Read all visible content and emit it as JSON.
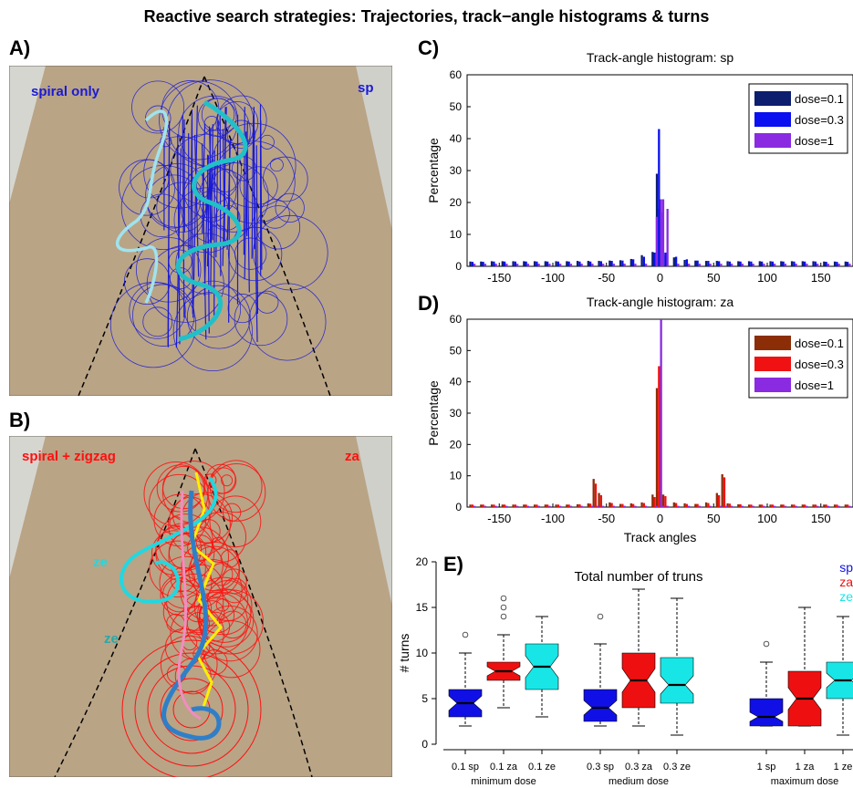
{
  "figure": {
    "title": "Reactive search strategies: Trajectories, track−angle histograms & turns"
  },
  "panel_a": {
    "label": "A)",
    "left_text": "spiral only",
    "right_text": "sp",
    "colors": {
      "main": "#1a1ad6",
      "accent1": "#9fe3ee",
      "accent2": "#20c0c8"
    }
  },
  "panel_b": {
    "label": "B)",
    "left_text": "spiral + zigzag",
    "right_text": "za",
    "ze_label_1": "ze",
    "ze_label_2": "ze",
    "colors": {
      "main": "#ff1010",
      "yellow": "#ffee00",
      "cyan": "#20d8e0",
      "blue": "#2f7fc8",
      "pink": "#f28cc0"
    }
  },
  "chart_data": [
    {
      "type": "bar",
      "panel_label": "C)",
      "title": "Track-angle histogram: sp",
      "xlabel": "",
      "ylabel": "Percentage",
      "xlim": [
        -180,
        180
      ],
      "ylim": [
        0,
        60
      ],
      "xticks": [
        -150,
        -100,
        -50,
        0,
        50,
        100,
        150
      ],
      "yticks": [
        0,
        10,
        20,
        30,
        40,
        50,
        60
      ],
      "legend_position": "top-right",
      "x": [
        -175,
        -165,
        -155,
        -145,
        -135,
        -125,
        -115,
        -105,
        -95,
        -85,
        -75,
        -65,
        -55,
        -45,
        -35,
        -25,
        -15,
        -5,
        -1,
        1,
        5,
        15,
        25,
        35,
        45,
        55,
        65,
        75,
        85,
        95,
        105,
        115,
        125,
        135,
        145,
        155,
        165,
        175
      ],
      "series": [
        {
          "name": "dose=0.1",
          "color": "#0d1e6e",
          "values": [
            1.5,
            1.5,
            1.6,
            1.6,
            1.6,
            1.6,
            1.6,
            1.6,
            1.6,
            1.6,
            1.7,
            1.7,
            1.7,
            1.8,
            1.9,
            2.3,
            3.5,
            4.5,
            29,
            18,
            3.5,
            2.8,
            2.0,
            1.8,
            1.7,
            1.7,
            1.6,
            1.6,
            1.6,
            1.6,
            1.6,
            1.6,
            1.6,
            1.6,
            1.6,
            1.5,
            1.5,
            1.5
          ]
        },
        {
          "name": "dose=0.3",
          "color": "#0a10f0",
          "values": [
            1.4,
            1.4,
            1.5,
            1.5,
            1.5,
            1.5,
            1.5,
            1.5,
            1.5,
            1.5,
            1.5,
            1.5,
            1.6,
            1.7,
            1.8,
            2.2,
            3.0,
            4.3,
            43,
            17,
            4.3,
            3.0,
            2.2,
            1.8,
            1.7,
            1.6,
            1.5,
            1.5,
            1.5,
            1.5,
            1.5,
            1.5,
            1.5,
            1.5,
            1.5,
            1.4,
            1.4,
            1.4
          ]
        },
        {
          "name": "dose=1",
          "color": "#8a2be2",
          "values": [
            0.8,
            0.8,
            0.8,
            0.8,
            0.8,
            0.8,
            0.8,
            0.8,
            0.8,
            0.8,
            0.8,
            0.8,
            0.8,
            0.8,
            0.8,
            0.8,
            0.8,
            15.5,
            21,
            21,
            18,
            0.8,
            0.8,
            0.8,
            0.8,
            0.8,
            0.8,
            0.8,
            0.8,
            0.8,
            0.8,
            0.8,
            0.8,
            0.8,
            0.8,
            0.8,
            0.8,
            0.8
          ]
        }
      ]
    },
    {
      "type": "bar",
      "panel_label": "D)",
      "title": "Track-angle histogram: za",
      "xlabel": "Track angles",
      "ylabel": "Percentage",
      "xlim": [
        -180,
        180
      ],
      "ylim": [
        0,
        60
      ],
      "xticks": [
        -150,
        -100,
        -50,
        0,
        50,
        100,
        150
      ],
      "yticks": [
        0,
        10,
        20,
        30,
        40,
        50,
        60
      ],
      "legend_position": "top-right",
      "x": [
        -175,
        -165,
        -155,
        -145,
        -135,
        -125,
        -115,
        -105,
        -95,
        -85,
        -75,
        -65,
        -60,
        -55,
        -45,
        -35,
        -25,
        -15,
        -5,
        -1,
        1,
        5,
        15,
        25,
        35,
        45,
        55,
        60,
        65,
        75,
        85,
        95,
        105,
        115,
        125,
        135,
        145,
        155,
        165,
        175
      ],
      "series": [
        {
          "name": "dose=0.1",
          "color": "#8b2e08",
          "values": [
            0.8,
            0.8,
            0.8,
            0.8,
            0.8,
            0.8,
            0.8,
            0.8,
            0.8,
            0.8,
            0.9,
            1.2,
            9.0,
            4.5,
            1.5,
            1.0,
            1.2,
            1.5,
            4.0,
            38,
            5,
            4.0,
            1.5,
            1.2,
            1.0,
            1.5,
            4.5,
            10.5,
            1.2,
            0.9,
            0.8,
            0.8,
            0.8,
            0.8,
            0.8,
            0.8,
            0.8,
            0.8,
            0.8,
            0.8
          ]
        },
        {
          "name": "dose=0.3",
          "color": "#f01212",
          "values": [
            0.8,
            0.8,
            0.8,
            0.8,
            0.8,
            0.8,
            0.8,
            0.8,
            0.8,
            0.8,
            0.9,
            1.1,
            7.5,
            3.8,
            1.3,
            1.0,
            1.0,
            1.3,
            3.2,
            45,
            4,
            3.5,
            1.3,
            1.0,
            1.0,
            1.3,
            3.8,
            9.5,
            1.1,
            0.9,
            0.8,
            0.8,
            0.8,
            0.8,
            0.8,
            0.8,
            0.8,
            0.8,
            0.8,
            0.8
          ]
        },
        {
          "name": "dose=1",
          "color": "#8a2be2",
          "values": [
            0.4,
            0.4,
            0.4,
            0.4,
            0.4,
            0.4,
            0.4,
            0.4,
            0.4,
            0.4,
            0.4,
            0.4,
            0.4,
            0.4,
            0.4,
            0.4,
            0.4,
            0.4,
            0.4,
            60,
            0.4,
            0.4,
            0.4,
            0.4,
            0.4,
            0.4,
            0.4,
            0.4,
            0.4,
            0.4,
            0.4,
            0.4,
            0.4,
            0.4,
            0.4,
            0.4,
            0.4,
            0.4,
            0.4,
            0.4
          ]
        }
      ]
    },
    {
      "type": "box",
      "panel_label": "E)",
      "title": "Total number of truns",
      "ylabel": "# turns",
      "ylim": [
        0,
        20
      ],
      "yticks": [
        0,
        5,
        10,
        15,
        20
      ],
      "legend": [
        {
          "name": "sp",
          "color": "#1010e6"
        },
        {
          "name": "za",
          "color": "#ee1010"
        },
        {
          "name": "ze",
          "color": "#18e6e6"
        }
      ],
      "groups": [
        "minimum dose",
        "medium dose",
        "maximum dose"
      ],
      "boxes": [
        {
          "label": "0.1 sp",
          "group": 0,
          "color": "#1010e6",
          "min": 2,
          "q1": 3,
          "median": 4.5,
          "q3": 6,
          "max": 10,
          "notch_low": 3.7,
          "notch_high": 5.3,
          "outliers": [
            12
          ]
        },
        {
          "label": "0.1 za",
          "group": 0,
          "color": "#ee1010",
          "min": 4,
          "q1": 7,
          "median": 8,
          "q3": 9,
          "max": 12,
          "notch_low": 7.5,
          "notch_high": 8.5,
          "outliers": [
            14,
            15,
            16
          ]
        },
        {
          "label": "0.1 ze",
          "group": 0,
          "color": "#18e6e6",
          "min": 3,
          "q1": 6,
          "median": 8.5,
          "q3": 11,
          "max": 14,
          "notch_low": 7.3,
          "notch_high": 9.7,
          "outliers": []
        },
        {
          "label": "0.3 sp",
          "group": 1,
          "color": "#1010e6",
          "min": 2,
          "q1": 2.5,
          "median": 4,
          "q3": 6,
          "max": 11,
          "notch_low": 3.2,
          "notch_high": 4.8,
          "outliers": [
            14
          ]
        },
        {
          "label": "0.3 za",
          "group": 1,
          "color": "#ee1010",
          "min": 2,
          "q1": 4,
          "median": 7,
          "q3": 10,
          "max": 17,
          "notch_low": 5.7,
          "notch_high": 8.3,
          "outliers": []
        },
        {
          "label": "0.3 ze",
          "group": 1,
          "color": "#18e6e6",
          "min": 1,
          "q1": 4.5,
          "median": 6.5,
          "q3": 9.5,
          "max": 16,
          "notch_low": 5.5,
          "notch_high": 7.5,
          "outliers": []
        },
        {
          "label": "1 sp",
          "group": 2,
          "color": "#1010e6",
          "min": 2,
          "q1": 2,
          "median": 3,
          "q3": 5,
          "max": 9,
          "notch_low": 2.5,
          "notch_high": 3.5,
          "outliers": [
            11
          ]
        },
        {
          "label": "1 za",
          "group": 2,
          "color": "#ee1010",
          "min": 2,
          "q1": 2,
          "median": 5,
          "q3": 8,
          "max": 15,
          "notch_low": 3.8,
          "notch_high": 6.2,
          "outliers": []
        },
        {
          "label": "1 ze",
          "group": 2,
          "color": "#18e6e6",
          "min": 1,
          "q1": 5,
          "median": 7,
          "q3": 9,
          "max": 14,
          "notch_low": 6.2,
          "notch_high": 7.8,
          "outliers": []
        }
      ]
    }
  ]
}
